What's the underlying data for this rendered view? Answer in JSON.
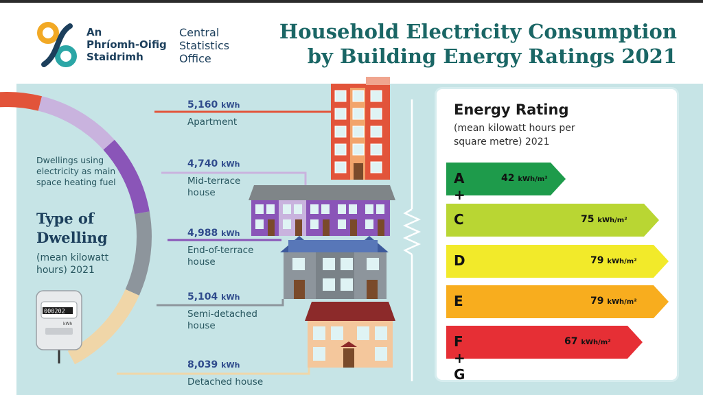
{
  "header": {
    "logo_irish_lines": [
      "An",
      "Phríomh-Oifig",
      "Staidrimh"
    ],
    "logo_english_lines": [
      "Central",
      "Statistics",
      "Office"
    ],
    "title_lines": [
      "Household Electricity Consumption",
      "by Building Energy Ratings 2021"
    ]
  },
  "dwelling_panel": {
    "subtitle": "Dwellings using electricity as main space heating fuel",
    "title_lines": [
      "Type of",
      "Dwelling"
    ],
    "note_lines": [
      "(mean kilowatt",
      "hours) 2021"
    ],
    "meter_reading": "000202",
    "meter_unit": "kWh"
  },
  "dwellings": [
    {
      "value": "5,160",
      "unit": "kWh",
      "label_lines": [
        "Apartment"
      ],
      "color": "#e2543a"
    },
    {
      "value": "4,740",
      "unit": "kWh",
      "label_lines": [
        "Mid-terrace",
        "house"
      ],
      "color": "#c9b3de"
    },
    {
      "value": "4,988",
      "unit": "kWh",
      "label_lines": [
        "End-of-terrace",
        "house"
      ],
      "color": "#8a55b8"
    },
    {
      "value": "5,104",
      "unit": "kWh",
      "label_lines": [
        "Semi-detached",
        "house"
      ],
      "color": "#8d959c"
    },
    {
      "value": "8,039",
      "unit": "kWh",
      "label_lines": [
        "Detached house"
      ],
      "color": "#f0d6a8"
    }
  ],
  "energy_rating": {
    "title": "Energy Rating",
    "subtitle_lines": [
      "(mean kilowatt hours per",
      "square metre) 2021"
    ],
    "unit": "kWh/m²",
    "bands": [
      {
        "label": "A + B",
        "value": "42",
        "value_num": 42,
        "color": "#1e9b4b"
      },
      {
        "label": "C",
        "value": "75",
        "value_num": 75,
        "color": "#b9d633"
      },
      {
        "label": "D",
        "value": "79",
        "value_num": 79,
        "color": "#f2ea2a"
      },
      {
        "label": "E",
        "value": "79",
        "value_num": 79,
        "color": "#f8ad1e"
      },
      {
        "label": "F + G",
        "value": "67",
        "value_num": 67,
        "color": "#e62f35"
      }
    ]
  }
}
